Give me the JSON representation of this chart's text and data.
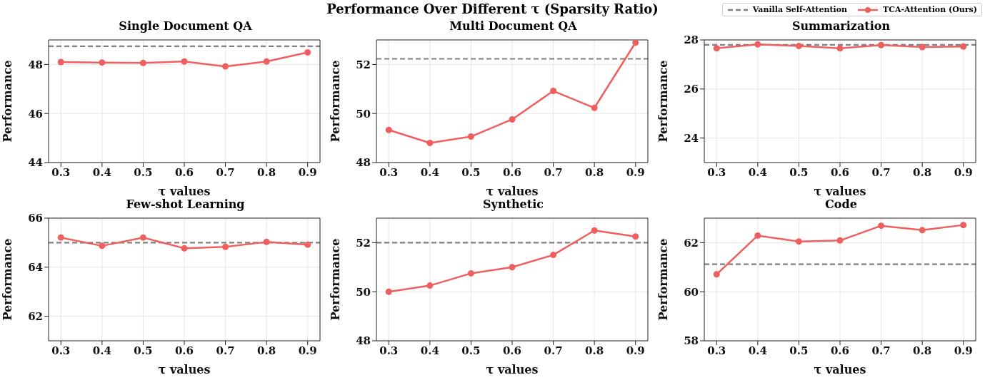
{
  "chart_data": [
    {
      "type": "other",
      "title": "Performance Over Different τ (Sparsity Ratio)"
    },
    {
      "type": "line",
      "title": "Single Document QA",
      "xlabel": "τ values",
      "ylabel": "Performance",
      "x": [
        0.3,
        0.4,
        0.5,
        0.6,
        0.7,
        0.8,
        0.9
      ],
      "xlim": [
        0.27,
        0.93
      ],
      "xticks": [
        0.3,
        0.4,
        0.5,
        0.6,
        0.7,
        0.8,
        0.9
      ],
      "ylim": [
        44,
        49
      ],
      "yticks": [
        44,
        46,
        48
      ],
      "grid": true,
      "marker": "circle",
      "line_style": "solid",
      "legend": "top right",
      "series": [
        {
          "name": "TCA-Attention (Ours)",
          "color": "#f05f5f",
          "values": [
            48.1,
            48.08,
            48.06,
            48.12,
            47.92,
            48.12,
            48.49
          ]
        }
      ],
      "ref_lines": [
        {
          "axis": "y",
          "value": 48.74,
          "label": "Vanilla Self-Attention",
          "color": "#808080",
          "line_style": "dashed"
        }
      ]
    },
    {
      "type": "line",
      "title": "Multi Document QA",
      "xlabel": "τ values",
      "ylabel": "Performance",
      "x": [
        0.3,
        0.4,
        0.5,
        0.6,
        0.7,
        0.8,
        0.9
      ],
      "xlim": [
        0.27,
        0.93
      ],
      "xticks": [
        0.3,
        0.4,
        0.5,
        0.6,
        0.7,
        0.8,
        0.9
      ],
      "ylim": [
        48,
        53
      ],
      "yticks": [
        48,
        50,
        52
      ],
      "grid": true,
      "marker": "circle",
      "line_style": "solid",
      "series": [
        {
          "color": "#f05f5f",
          "values": [
            49.33,
            48.8,
            49.06,
            49.76,
            50.92,
            50.23,
            52.89
          ]
        }
      ],
      "ref_lines": [
        {
          "axis": "y",
          "value": 52.23,
          "color": "#808080",
          "line_style": "dashed"
        }
      ]
    },
    {
      "type": "line",
      "title": "Summarization",
      "xlabel": "τ values",
      "ylabel": "Performance",
      "x": [
        0.3,
        0.4,
        0.5,
        0.6,
        0.7,
        0.8,
        0.9
      ],
      "xlim": [
        0.27,
        0.93
      ],
      "xticks": [
        0.3,
        0.4,
        0.5,
        0.6,
        0.7,
        0.8,
        0.9
      ],
      "ylim": [
        23,
        28
      ],
      "yticks": [
        24,
        26,
        28
      ],
      "grid": true,
      "marker": "circle",
      "line_style": "solid",
      "series": [
        {
          "color": "#f05f5f",
          "values": [
            27.66,
            27.82,
            27.75,
            27.66,
            27.79,
            27.71,
            27.73
          ]
        }
      ],
      "ref_lines": [
        {
          "axis": "y",
          "value": 27.8,
          "color": "#808080",
          "line_style": "dashed"
        }
      ]
    },
    {
      "type": "line",
      "title": "Few-shot Learning",
      "xlabel": "τ values",
      "ylabel": "Performance",
      "x": [
        0.3,
        0.4,
        0.5,
        0.6,
        0.7,
        0.8,
        0.9
      ],
      "xlim": [
        0.27,
        0.93
      ],
      "xticks": [
        0.3,
        0.4,
        0.5,
        0.6,
        0.7,
        0.8,
        0.9
      ],
      "ylim": [
        61,
        66
      ],
      "yticks": [
        62,
        64,
        66
      ],
      "grid": true,
      "marker": "circle",
      "line_style": "solid",
      "series": [
        {
          "color": "#f05f5f",
          "values": [
            65.21,
            64.87,
            65.21,
            64.77,
            64.83,
            65.03,
            64.92
          ]
        }
      ],
      "ref_lines": [
        {
          "axis": "y",
          "value": 65.0,
          "color": "#808080",
          "line_style": "dashed"
        }
      ]
    },
    {
      "type": "line",
      "title": "Synthetic",
      "xlabel": "τ values",
      "ylabel": "Performance",
      "x": [
        0.3,
        0.4,
        0.5,
        0.6,
        0.7,
        0.8,
        0.9
      ],
      "xlim": [
        0.27,
        0.93
      ],
      "xticks": [
        0.3,
        0.4,
        0.5,
        0.6,
        0.7,
        0.8,
        0.9
      ],
      "ylim": [
        48,
        53
      ],
      "yticks": [
        48,
        50,
        52
      ],
      "grid": true,
      "marker": "circle",
      "line_style": "solid",
      "series": [
        {
          "color": "#f05f5f",
          "values": [
            50.0,
            50.25,
            50.75,
            51.0,
            51.5,
            52.5,
            52.25
          ]
        }
      ],
      "ref_lines": [
        {
          "axis": "y",
          "value": 52.0,
          "color": "#808080",
          "line_style": "dashed"
        }
      ]
    },
    {
      "type": "line",
      "title": "Code",
      "xlabel": "τ values",
      "ylabel": "Performance",
      "x": [
        0.3,
        0.4,
        0.5,
        0.6,
        0.7,
        0.8,
        0.9
      ],
      "xlim": [
        0.27,
        0.93
      ],
      "xticks": [
        0.3,
        0.4,
        0.5,
        0.6,
        0.7,
        0.8,
        0.9
      ],
      "ylim": [
        58,
        63
      ],
      "yticks": [
        58,
        60,
        62
      ],
      "grid": true,
      "marker": "circle",
      "line_style": "solid",
      "series": [
        {
          "color": "#f05f5f",
          "values": [
            60.71,
            62.29,
            62.05,
            62.09,
            62.69,
            62.51,
            62.72
          ]
        }
      ],
      "ref_lines": [
        {
          "axis": "y",
          "value": 61.12,
          "color": "#808080",
          "line_style": "dashed"
        }
      ]
    }
  ]
}
